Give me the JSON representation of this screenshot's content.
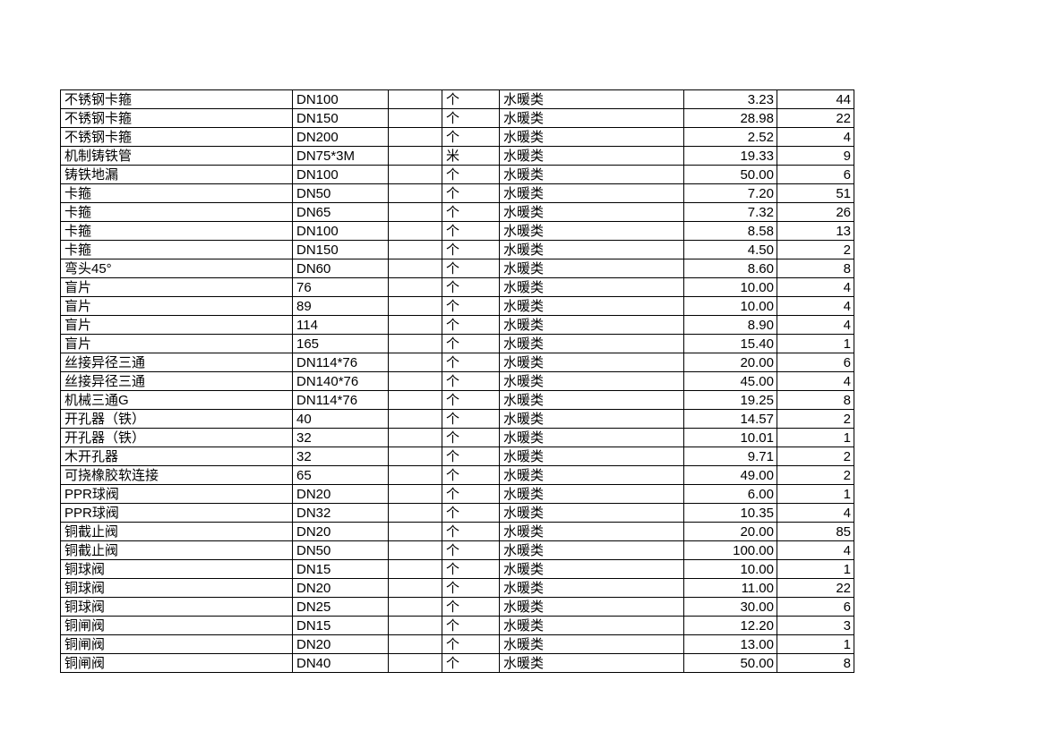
{
  "page": {
    "background_color": "#ffffff",
    "text_color": "#000000",
    "grid_border_color": "#000000"
  },
  "table": {
    "columns": [
      {
        "key": "item-name",
        "align": "left"
      },
      {
        "key": "spec",
        "align": "left"
      },
      {
        "key": "blank",
        "align": "left"
      },
      {
        "key": "unit",
        "align": "left"
      },
      {
        "key": "category",
        "align": "left"
      },
      {
        "key": "unit-price",
        "align": "right"
      },
      {
        "key": "quantity",
        "align": "right"
      }
    ],
    "rows": [
      [
        "不锈钢卡箍",
        "DN100",
        "",
        "个",
        "水暖类",
        "3.23",
        "44"
      ],
      [
        "不锈钢卡箍",
        "DN150",
        "",
        "个",
        "水暖类",
        "28.98",
        "22"
      ],
      [
        "不锈钢卡箍",
        "DN200",
        "",
        "个",
        "水暖类",
        "2.52",
        "4"
      ],
      [
        "机制铸铁管",
        "DN75*3M",
        "",
        "米",
        "水暖类",
        "19.33",
        "9"
      ],
      [
        "铸铁地漏",
        "DN100",
        "",
        "个",
        "水暖类",
        "50.00",
        "6"
      ],
      [
        "卡箍",
        "DN50",
        "",
        "个",
        "水暖类",
        "7.20",
        "51"
      ],
      [
        "卡箍",
        "DN65",
        "",
        "个",
        "水暖类",
        "7.32",
        "26"
      ],
      [
        "卡箍",
        "DN100",
        "",
        "个",
        "水暖类",
        "8.58",
        "13"
      ],
      [
        "卡箍",
        "DN150",
        "",
        "个",
        "水暖类",
        "4.50",
        "2"
      ],
      [
        "弯头45°",
        "DN60",
        "",
        "个",
        "水暖类",
        "8.60",
        "8"
      ],
      [
        "盲片",
        "76",
        "",
        "个",
        "水暖类",
        "10.00",
        "4"
      ],
      [
        "盲片",
        "89",
        "",
        "个",
        "水暖类",
        "10.00",
        "4"
      ],
      [
        "盲片",
        "114",
        "",
        "个",
        "水暖类",
        "8.90",
        "4"
      ],
      [
        "盲片",
        "165",
        "",
        "个",
        "水暖类",
        "15.40",
        "1"
      ],
      [
        "丝接异径三通",
        "DN114*76",
        "",
        "个",
        "水暖类",
        "20.00",
        "6"
      ],
      [
        "丝接异径三通",
        "DN140*76",
        "",
        "个",
        "水暖类",
        "45.00",
        "4"
      ],
      [
        "机械三通G",
        "DN114*76",
        "",
        "个",
        "水暖类",
        "19.25",
        "8"
      ],
      [
        "开孔器（铁）",
        "40",
        "",
        "个",
        "水暖类",
        "14.57",
        "2"
      ],
      [
        "开孔器（铁）",
        "32",
        "",
        "个",
        "水暖类",
        "10.01",
        "1"
      ],
      [
        "木开孔器",
        "32",
        "",
        "个",
        "水暖类",
        "9.71",
        "2"
      ],
      [
        "可挠橡胶软连接",
        "65",
        "",
        "个",
        "水暖类",
        "49.00",
        "2"
      ],
      [
        "PPR球阀",
        "DN20",
        "",
        "个",
        "水暖类",
        "6.00",
        "1"
      ],
      [
        "PPR球阀",
        "DN32",
        "",
        "个",
        "水暖类",
        "10.35",
        "4"
      ],
      [
        "铜截止阀",
        "DN20",
        "",
        "个",
        "水暖类",
        "20.00",
        "85"
      ],
      [
        "铜截止阀",
        "DN50",
        "",
        "个",
        "水暖类",
        "100.00",
        "4"
      ],
      [
        "铜球阀",
        "DN15",
        "",
        "个",
        "水暖类",
        "10.00",
        "1"
      ],
      [
        "铜球阀",
        "DN20",
        "",
        "个",
        "水暖类",
        "11.00",
        "22"
      ],
      [
        "铜球阀",
        "DN25",
        "",
        "个",
        "水暖类",
        "30.00",
        "6"
      ],
      [
        "铜闸阀",
        "DN15",
        "",
        "个",
        "水暖类",
        "12.20",
        "3"
      ],
      [
        "铜闸阀",
        "DN20",
        "",
        "个",
        "水暖类",
        "13.00",
        "1"
      ],
      [
        "铜闸阀",
        "DN40",
        "",
        "个",
        "水暖类",
        "50.00",
        "8"
      ]
    ]
  }
}
